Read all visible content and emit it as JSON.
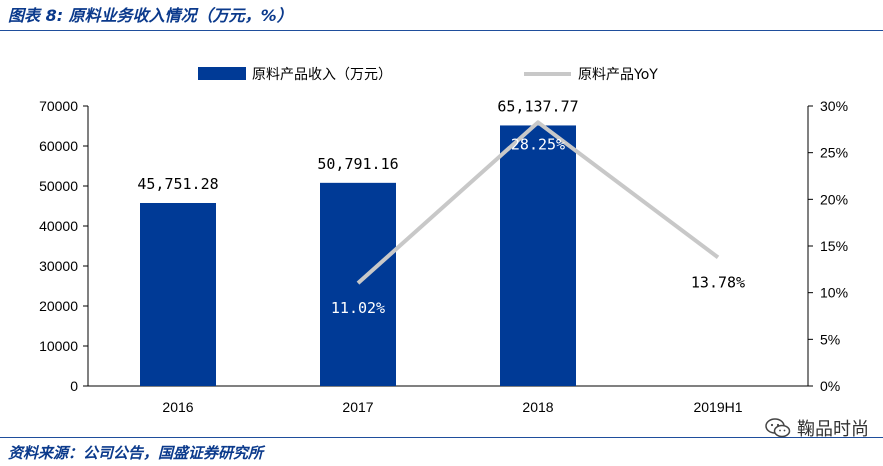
{
  "header": {
    "title": "图表 8: 原料业务收入情况（万元，%）"
  },
  "footer": {
    "source": "资料来源：公司公告，国盛证券研究所"
  },
  "watermark": {
    "text": "鞠品时尚",
    "icon": "wechat-icon"
  },
  "colors": {
    "bar": "#003a96",
    "line": "#c8c8c8",
    "rule": "#1f4e9c",
    "title": "#0b3a8c"
  },
  "chart_data": {
    "type": "bar",
    "categories": [
      "2016",
      "2017",
      "2018",
      "2019H1"
    ],
    "series": [
      {
        "name": "原料产品收入（万元）",
        "kind": "bar",
        "axis": "left",
        "values": [
          45751.28,
          50791.16,
          65137.77,
          null
        ],
        "labels": [
          "45,751.28",
          "50,791.16",
          "65,137.77",
          ""
        ]
      },
      {
        "name": "原料产品YoY",
        "kind": "line",
        "axis": "right",
        "values": [
          null,
          11.02,
          28.25,
          13.78
        ],
        "labels": [
          "",
          "11.02%",
          "28.25%",
          "13.78%"
        ]
      }
    ],
    "y_left": {
      "min": 0,
      "max": 70000,
      "ticks": [
        "0",
        "10000",
        "20000",
        "30000",
        "40000",
        "50000",
        "60000",
        "70000"
      ]
    },
    "y_right": {
      "min": 0,
      "max": 30,
      "ticks": [
        "0%",
        "5%",
        "10%",
        "15%",
        "20%",
        "25%",
        "30%"
      ]
    },
    "legend_position": "top-center",
    "grid": false
  }
}
